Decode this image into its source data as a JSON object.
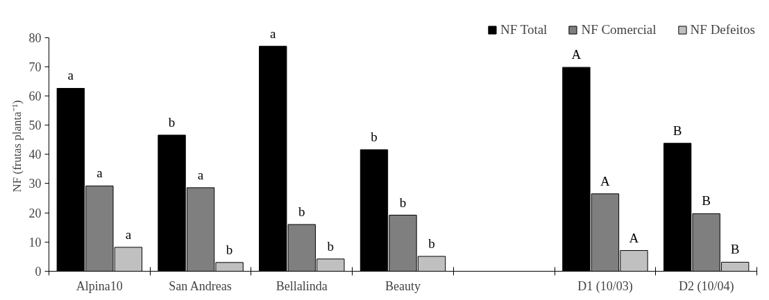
{
  "chart_data": {
    "type": "bar",
    "ylabel": "NF (frutas planta⁻¹)",
    "categories": [
      "Alpina10",
      "San Andreas",
      "Bellalinda",
      "Beauty",
      null,
      "D1 (10/03)",
      "D2 (10/04)"
    ],
    "series": [
      {
        "name": "NF Total",
        "color": "#000000",
        "values": [
          62.6,
          46.6,
          77.0,
          41.6,
          null,
          69.8,
          43.8
        ]
      },
      {
        "name": "NF Comercial",
        "color": "#7f7f7f",
        "values": [
          29.2,
          28.6,
          16.0,
          19.2,
          null,
          26.5,
          19.7
        ]
      },
      {
        "name": "NF Defeitos",
        "color": "#c0c0c0",
        "values": [
          8.2,
          3.0,
          4.2,
          5.1,
          null,
          7.1,
          3.1
        ]
      }
    ],
    "ylim": [
      0,
      80
    ],
    "yticks": [
      0,
      10,
      20,
      30,
      40,
      50,
      60,
      70,
      80
    ],
    "grid": false,
    "legend": "top right",
    "annotations": [
      "a",
      "a",
      "a",
      "b",
      "a",
      "b",
      "a",
      "b",
      "b",
      "b",
      "b",
      "b",
      "A",
      "A",
      "A",
      "B",
      "B",
      "B"
    ]
  }
}
